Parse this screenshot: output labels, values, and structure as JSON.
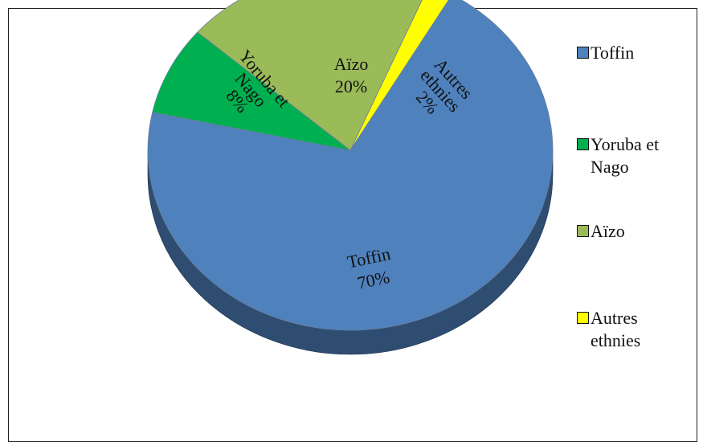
{
  "chart_data": {
    "type": "pie",
    "style": "3d",
    "categories": [
      "Toffin",
      "Yoruba et Nago",
      "Aïzo",
      "Autres ethnies"
    ],
    "values": [
      70,
      8,
      20,
      2
    ],
    "unit": "%",
    "colors": [
      "#4F81BD",
      "#00B050",
      "#9BBB59",
      "#FFFF00"
    ],
    "side_color": "#2A4570",
    "data_labels": [
      {
        "name": "Toffin",
        "value": "70%"
      },
      {
        "name": "Yoruba et Nago",
        "value": "8%"
      },
      {
        "name": "Aïzo",
        "value": "20%"
      },
      {
        "name": "Autres ethnies",
        "value": "2%"
      }
    ],
    "legend_position": "right",
    "legend": [
      "Toffin",
      "Yoruba et\nNago",
      "Aïzo",
      "Autres\nethnies"
    ]
  }
}
